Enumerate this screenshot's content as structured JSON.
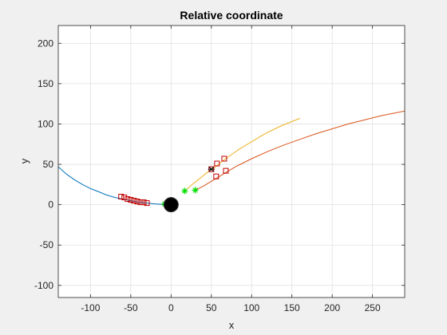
{
  "chart_data": {
    "type": "line",
    "title": "Relative coordinate",
    "xlabel": "x",
    "ylabel": "y",
    "xlim": [
      -140,
      290
    ],
    "ylim": [
      -115,
      222
    ],
    "xticks": [
      -100,
      -50,
      0,
      50,
      100,
      150,
      200,
      250
    ],
    "yticks": [
      -100,
      -50,
      0,
      50,
      100,
      150,
      200
    ],
    "grid": true,
    "legend": "none",
    "colors": {
      "blue": "#0072BD",
      "red": "#D95319",
      "yellow": "#EDB120",
      "marker_red": "#C00000",
      "green": "#00E000",
      "origin": "#000000",
      "background": "#f0f0f0",
      "axes": "#ffffff",
      "grid": "#e1e1e1",
      "axis_line": "#262626"
    },
    "series": [
      {
        "color": "blue",
        "x": [
          -140,
          -130,
          -120,
          -110,
          -100,
          -90,
          -80,
          -70,
          -60,
          -50,
          -40,
          -30,
          -20,
          -10,
          0
        ],
        "y": [
          47,
          38,
          31,
          25,
          20,
          16,
          12,
          9,
          7,
          5,
          3,
          2,
          1,
          0.3,
          0
        ]
      },
      {
        "color": "red",
        "x": [
          30,
          40,
          50,
          60,
          70,
          80,
          90,
          100,
          120,
          140,
          160,
          180,
          200,
          220,
          240,
          260,
          290
        ],
        "y": [
          18,
          23,
          29,
          35,
          41,
          47,
          52,
          57,
          66,
          74,
          81,
          88,
          94,
          100,
          105,
          110,
          116
        ]
      },
      {
        "color": "yellow",
        "x": [
          15,
          25,
          35,
          45,
          55,
          65,
          75,
          85,
          95,
          105,
          115,
          125,
          135,
          145,
          155,
          160
        ],
        "y": [
          15,
          24,
          32,
          40,
          47,
          55,
          62,
          69,
          75,
          81,
          87,
          92,
          97,
          101,
          105,
          107
        ]
      }
    ],
    "square_markers": {
      "color": "marker_red",
      "points": [
        [
          -62,
          10
        ],
        [
          -58,
          9
        ],
        [
          -54,
          7
        ],
        [
          -50,
          6
        ],
        [
          -46,
          5
        ],
        [
          -42,
          4
        ],
        [
          -38,
          3
        ],
        [
          -34,
          3
        ],
        [
          -30,
          2
        ],
        [
          50,
          44
        ],
        [
          57,
          51
        ],
        [
          66,
          57
        ],
        [
          56,
          35
        ],
        [
          68,
          42
        ]
      ]
    },
    "star_markers": {
      "color": "green",
      "points": [
        [
          17,
          17
        ],
        [
          30,
          18
        ],
        [
          -8,
          1
        ]
      ]
    },
    "cross_markers": {
      "color": "origin",
      "points": [
        [
          50,
          44
        ]
      ]
    },
    "origin_marker": {
      "color": "origin",
      "point": [
        0,
        0
      ]
    }
  }
}
